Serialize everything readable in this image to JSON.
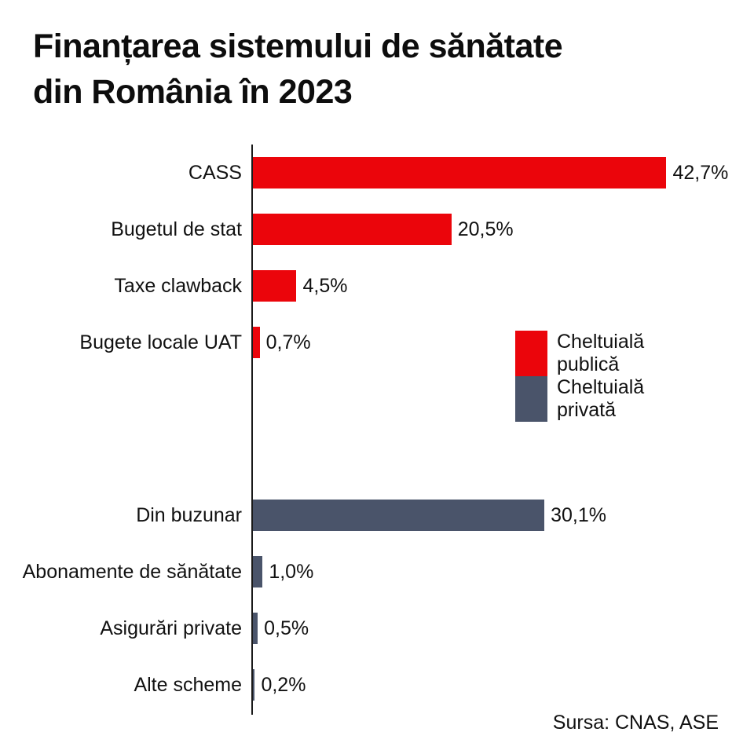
{
  "title": {
    "line1": "Finanțarea sistemului de sănătate",
    "line2": "din România în 2023"
  },
  "source": "Sursa: CNAS, ASE",
  "colors": {
    "public": "#EB050B",
    "private": "#4A546A",
    "text": "#111111",
    "axis": "#1a1a1a",
    "background": "#ffffff"
  },
  "legend": {
    "items": [
      {
        "label": "Cheltuială\npublică",
        "color_key": "public"
      },
      {
        "label": "Cheltuială\nprivată",
        "color_key": "private"
      }
    ]
  },
  "chart_data": {
    "type": "bar",
    "orientation": "horizontal",
    "title": "Finanțarea sistemului de sănătate din România în 2023",
    "xlabel": "",
    "ylabel": "",
    "xlim": [
      0,
      45
    ],
    "grid": false,
    "legend_position": "middle-right",
    "value_format": "percent with comma decimal separator",
    "source": "Sursa: CNAS, ASE",
    "series": [
      {
        "name": "Cheltuială publică",
        "color_key": "public",
        "data": [
          {
            "category": "CASS",
            "value": 42.7,
            "display": "42,7%"
          },
          {
            "category": "Bugetul de stat",
            "value": 20.5,
            "display": "20,5%"
          },
          {
            "category": "Taxe clawback",
            "value": 4.5,
            "display": "4,5%"
          },
          {
            "category": "Bugete locale UAT",
            "value": 0.7,
            "display": "0,7%"
          }
        ]
      },
      {
        "name": "Cheltuială privată",
        "color_key": "private",
        "data": [
          {
            "category": "Din buzunar",
            "value": 30.1,
            "display": "30,1%"
          },
          {
            "category": "Abonamente de sănătate",
            "value": 1.0,
            "display": "1,0%"
          },
          {
            "category": "Asigurări private",
            "value": 0.5,
            "display": "0,5%"
          },
          {
            "category": "Alte scheme",
            "value": 0.2,
            "display": "0,2%"
          }
        ]
      }
    ]
  }
}
